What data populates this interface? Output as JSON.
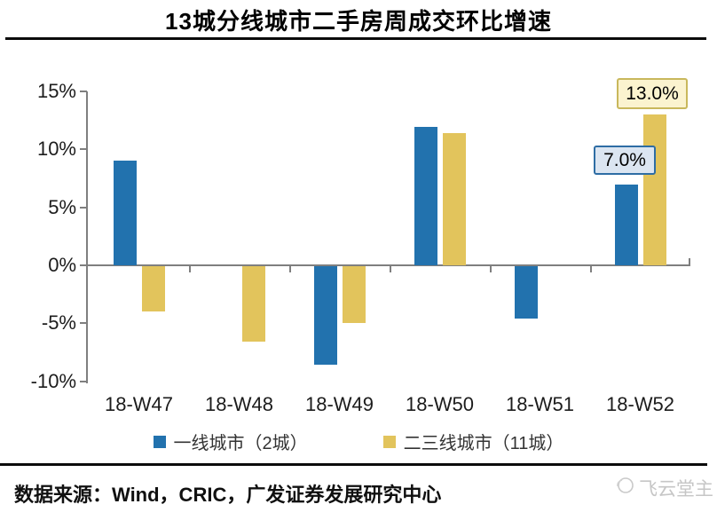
{
  "header": {
    "title": "13城分线城市二手房周成交环比增速"
  },
  "footer": {
    "source": "数据来源：Wind，CRIC，广发证券发展研究中心",
    "watermark": "飞云堂主"
  },
  "colors": {
    "tier1_blue": "#2272AE",
    "tier23_yellow": "#E2C45C",
    "axis_gray": "#7F7F7F",
    "annotation_blue_bg": "#DBE5F1",
    "annotation_blue_border": "#2E6DA4",
    "annotation_yellow_bg": "#FBF3CF",
    "annotation_yellow_border": "#C9B85C",
    "watermark_gray": "#C6C6C6"
  },
  "chart_data": {
    "type": "bar",
    "title": "13城分线城市二手房周成交环比增速",
    "categories": [
      "18-W47",
      "18-W48",
      "18-W49",
      "18-W50",
      "18-W51",
      "18-W52"
    ],
    "series": [
      {
        "name": "一线城市（2城）",
        "color": "#2272AE",
        "values": [
          9.0,
          0,
          -8.5,
          11.9,
          -4.5,
          7.0
        ]
      },
      {
        "name": "二三线城市（11城）",
        "color": "#E2C45C",
        "values": [
          -3.9,
          -6.5,
          -4.9,
          11.4,
          0,
          13.0
        ]
      }
    ],
    "ylabel": "",
    "xlabel": "",
    "unit": "%",
    "ylim": [
      -10,
      15
    ],
    "ytick_step": 5,
    "yticks": [
      "15%",
      "10%",
      "5%",
      "0%",
      "-5%",
      "-10%"
    ],
    "grid": false,
    "legend_position": "bottom",
    "annotations": [
      {
        "series": "一线城市（2城）",
        "category": "18-W52",
        "label": "7.0%"
      },
      {
        "series": "二三线城市（11城）",
        "category": "18-W52",
        "label": "13.0%"
      }
    ]
  }
}
